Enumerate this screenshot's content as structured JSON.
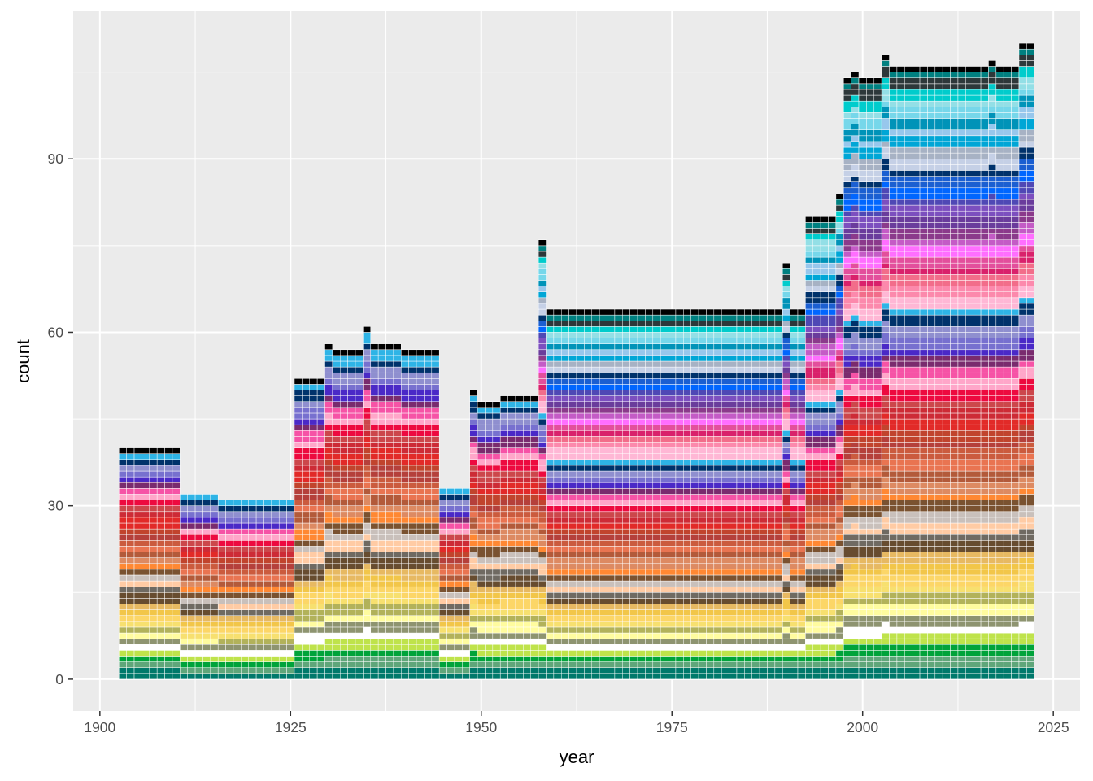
{
  "chart_data": {
    "type": "bar",
    "stacked": true,
    "title": "",
    "xlabel": "year",
    "ylabel": "count",
    "xlim": [
      1896.5,
      2028.5
    ],
    "ylim": [
      -5.5,
      115.5
    ],
    "x_ticks": [
      1900,
      1925,
      1950,
      1975,
      2000,
      2025
    ],
    "y_ticks": [
      0,
      30,
      60,
      90
    ],
    "grid": true,
    "legend": "none",
    "bar_outline_color": "#ffffff",
    "background_color": "#ebebeb",
    "segments": [
      {
        "from": 1903,
        "to": 1910,
        "count": 40
      },
      {
        "from": 1911,
        "to": 1915,
        "count": 32
      },
      {
        "from": 1916,
        "to": 1925,
        "count": 31
      },
      {
        "from": 1926,
        "to": 1929,
        "count": 52
      },
      {
        "from": 1930,
        "to": 1930,
        "count": 58
      },
      {
        "from": 1931,
        "to": 1934,
        "count": 57
      },
      {
        "from": 1935,
        "to": 1935,
        "count": 61
      },
      {
        "from": 1936,
        "to": 1939,
        "count": 58
      },
      {
        "from": 1940,
        "to": 1944,
        "count": 57
      },
      {
        "from": 1945,
        "to": 1948,
        "count": 33
      },
      {
        "from": 1949,
        "to": 1949,
        "count": 50
      },
      {
        "from": 1950,
        "to": 1952,
        "count": 48
      },
      {
        "from": 1953,
        "to": 1957,
        "count": 49
      },
      {
        "from": 1958,
        "to": 1958,
        "count": 76
      },
      {
        "from": 1959,
        "to": 1989,
        "count": 64
      },
      {
        "from": 1990,
        "to": 1990,
        "count": 72
      },
      {
        "from": 1991,
        "to": 1992,
        "count": 64
      },
      {
        "from": 1993,
        "to": 1996,
        "count": 80
      },
      {
        "from": 1997,
        "to": 1997,
        "count": 84
      },
      {
        "from": 1998,
        "to": 1998,
        "count": 104
      },
      {
        "from": 1999,
        "to": 1999,
        "count": 105
      },
      {
        "from": 2000,
        "to": 2002,
        "count": 104
      },
      {
        "from": 2003,
        "to": 2003,
        "count": 108
      },
      {
        "from": 2004,
        "to": 2016,
        "count": 106
      },
      {
        "from": 2017,
        "to": 2017,
        "count": 107
      },
      {
        "from": 2018,
        "to": 2020,
        "count": 106
      },
      {
        "from": 2021,
        "to": 2022,
        "count": 110
      }
    ],
    "palette_bottom_to_top": [
      "#00796b",
      "#5fa67a",
      "#00a33a",
      "#bfe34b",
      "#ffffff",
      "#8e9470",
      "#fffc9f",
      "#b2b25a",
      "#f7e06f",
      "#fcd667",
      "#f2c649",
      "#e7b962",
      "#674c2f",
      "#6f6a62",
      "#ffcba4",
      "#c9c0bb",
      "#7a5230",
      "#ff8833",
      "#dd8a62",
      "#b35a3a",
      "#e97451",
      "#cb5b3e",
      "#b5403b",
      "#c1442d",
      "#e22a28",
      "#cd2b36",
      "#cc474b",
      "#ed0a3f",
      "#ffa6c9",
      "#f653a6",
      "#7a2b6e",
      "#4a29c7",
      "#7770cf",
      "#8f8fcf",
      "#00326b",
      "#2eb4e6",
      "#000000"
    ],
    "palette_modern_top": [
      "#ffb7d5",
      "#fc89ac",
      "#f26d8a",
      "#d9216b",
      "#e34f9c",
      "#ff6eff",
      "#c45bc6",
      "#8b3a8b",
      "#6a3c9c",
      "#7c4fbf",
      "#4f48b5",
      "#0066ff",
      "#1b5fd1",
      "#00326b",
      "#c5d0e6",
      "#a7b2c4",
      "#00a6d6",
      "#97c7ec",
      "#0093b8",
      "#76d7ea",
      "#93dfe6",
      "#00cccc",
      "#2d383a",
      "#008080",
      "#000000"
    ]
  }
}
